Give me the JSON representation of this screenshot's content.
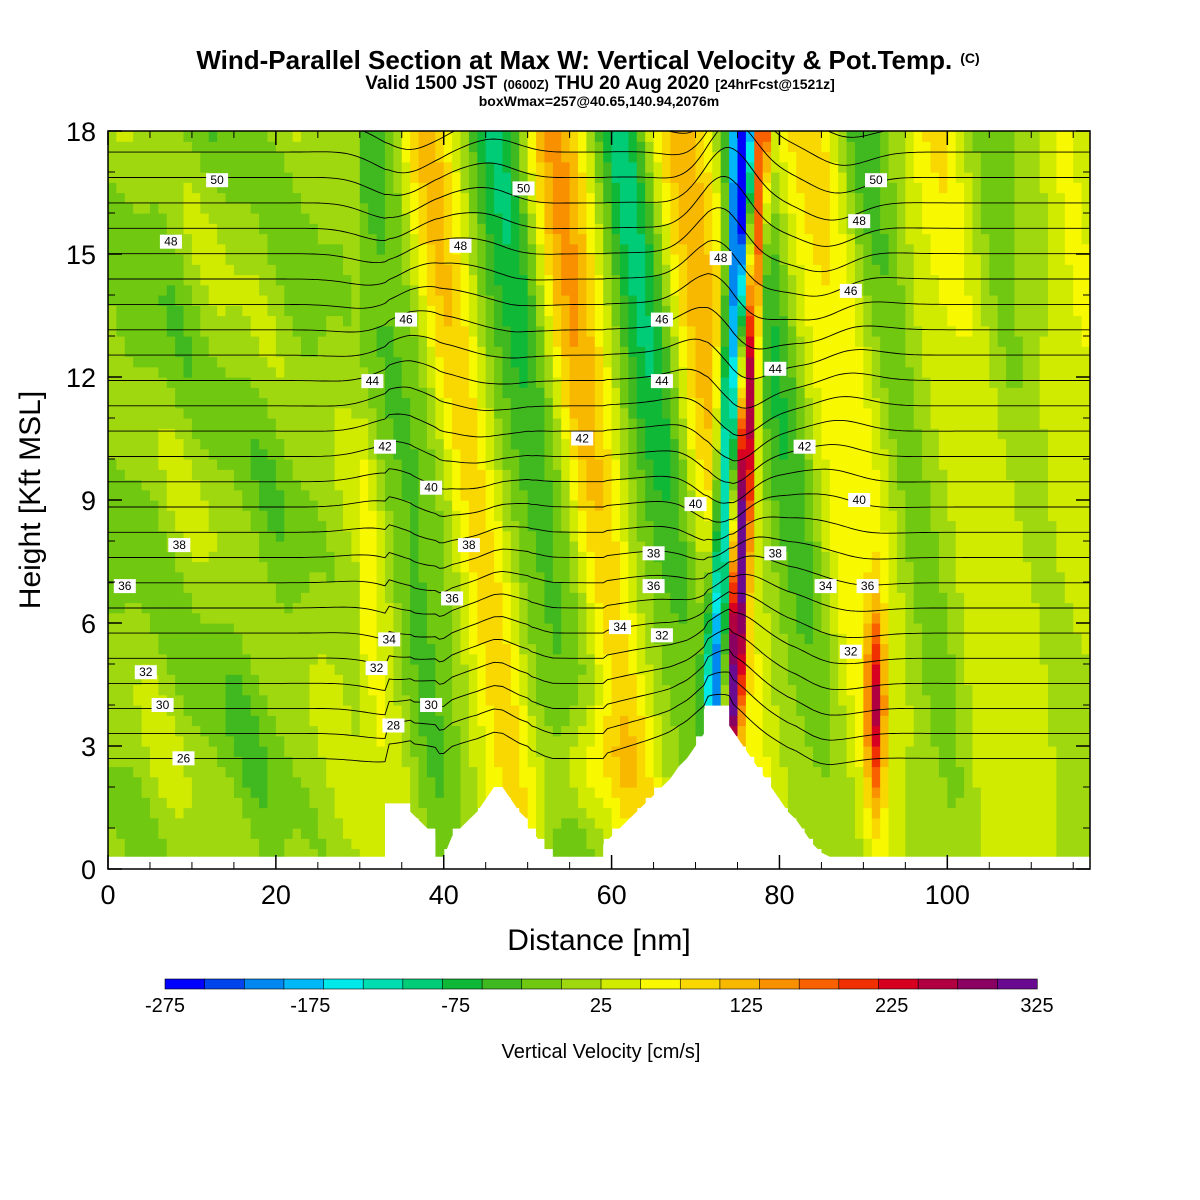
{
  "title": {
    "main": "Wind-Parallel Section at Max W: Vertical Velocity & Pot.Temp.",
    "main_mark": "(C)",
    "valid_pre": "Valid 1500 JST",
    "valid_utc": "(0600Z)",
    "valid_post": "THU 20 Aug 2020",
    "fcst": "[24hrFcst@1521z]",
    "boxinfo": "boxWmax=257@40.65,140.94,2076m"
  },
  "colors": {
    "palette": [
      "#0000ff",
      "#0044ee",
      "#0088f0",
      "#00b8f8",
      "#00e8e8",
      "#00ddb0",
      "#00cc77",
      "#10b838",
      "#40b820",
      "#70c810",
      "#a0d810",
      "#d0ea00",
      "#f8f800",
      "#f8d800",
      "#f8b800",
      "#f89000",
      "#f86000",
      "#f03000",
      "#d80020",
      "#b00040",
      "#8a0060",
      "#6a0a90"
    ],
    "terrain": "#ffffff",
    "contour": "#000000"
  },
  "chart_data": {
    "type": "heatmap",
    "xlabel": "Distance [nm]",
    "ylabel": "Height [Kft MSL]",
    "xlim": [
      0,
      117
    ],
    "ylim": [
      0,
      18
    ],
    "xticks": [
      0,
      20,
      40,
      60,
      80,
      100
    ],
    "yticks": [
      0,
      3,
      6,
      9,
      12,
      15,
      18
    ],
    "colorbar": {
      "label": "Vertical Velocity [cm/s]",
      "min": -275,
      "max": 325,
      "step": 25,
      "tick_values": [
        -275,
        -175,
        -75,
        25,
        125,
        225,
        325
      ],
      "tick_labels": [
        "-275",
        "-175",
        "-75",
        "25",
        "125",
        "225",
        "325"
      ]
    },
    "terrain": {
      "x": [
        0,
        31,
        32,
        33,
        33,
        36,
        36,
        37,
        38,
        39,
        39,
        40,
        41,
        42,
        43,
        44,
        45,
        46,
        47,
        48,
        49,
        50,
        50,
        51,
        52,
        53,
        53,
        59,
        59,
        60,
        61,
        62,
        63,
        64,
        65,
        66,
        67,
        68,
        69,
        70,
        71,
        71,
        74,
        74,
        75,
        76,
        77,
        78,
        79,
        80,
        81,
        82,
        83,
        84,
        85,
        86,
        86,
        117
      ],
      "height": [
        0.3,
        0.3,
        0.3,
        0.3,
        1.6,
        1.6,
        1.4,
        1.2,
        1.0,
        0.8,
        0.3,
        0.3,
        0.8,
        1.0,
        1.2,
        1.4,
        1.7,
        2.0,
        2.0,
        1.7,
        1.4,
        1.2,
        1.0,
        0.8,
        0.5,
        0.3,
        0.3,
        0.3,
        0.6,
        0.8,
        1.0,
        1.2,
        1.4,
        1.6,
        1.8,
        2.0,
        2.2,
        2.5,
        2.7,
        3.0,
        3.3,
        3.9,
        3.9,
        3.5,
        3.2,
        2.9,
        2.6,
        2.3,
        2.0,
        1.7,
        1.4,
        1.2,
        0.9,
        0.6,
        0.4,
        0.3,
        0.3,
        0.3
      ]
    },
    "theta_levels": [
      26,
      27,
      28,
      29,
      30,
      31,
      32,
      33,
      34,
      35,
      36,
      37,
      38,
      39,
      40,
      41,
      42,
      43,
      44,
      45,
      46,
      47,
      48,
      49,
      50,
      51
    ],
    "theta_labels": [
      {
        "text": "50",
        "x": 13,
        "y": 16.8
      },
      {
        "text": "48",
        "x": 7.5,
        "y": 15.3
      },
      {
        "text": "38",
        "x": 8.5,
        "y": 7.9
      },
      {
        "text": "36",
        "x": 2,
        "y": 6.9
      },
      {
        "text": "32",
        "x": 4.5,
        "y": 4.8
      },
      {
        "text": "30",
        "x": 6.5,
        "y": 4.0
      },
      {
        "text": "26",
        "x": 9,
        "y": 2.7
      },
      {
        "text": "50",
        "x": 49.5,
        "y": 16.6
      },
      {
        "text": "48",
        "x": 42,
        "y": 15.2
      },
      {
        "text": "46",
        "x": 35.5,
        "y": 13.4
      },
      {
        "text": "44",
        "x": 31.5,
        "y": 11.9
      },
      {
        "text": "42",
        "x": 33,
        "y": 10.3
      },
      {
        "text": "40",
        "x": 38.5,
        "y": 9.3
      },
      {
        "text": "38",
        "x": 43,
        "y": 7.9
      },
      {
        "text": "36",
        "x": 41,
        "y": 6.6
      },
      {
        "text": "34",
        "x": 33.5,
        "y": 5.6
      },
      {
        "text": "32",
        "x": 32,
        "y": 4.9
      },
      {
        "text": "30",
        "x": 38.5,
        "y": 4.0
      },
      {
        "text": "28",
        "x": 34,
        "y": 3.5
      },
      {
        "text": "42",
        "x": 56.5,
        "y": 10.5
      },
      {
        "text": "46",
        "x": 66,
        "y": 13.4
      },
      {
        "text": "44",
        "x": 66,
        "y": 11.9
      },
      {
        "text": "48",
        "x": 73,
        "y": 14.9
      },
      {
        "text": "40",
        "x": 70,
        "y": 8.9
      },
      {
        "text": "38",
        "x": 65,
        "y": 7.7
      },
      {
        "text": "36",
        "x": 65,
        "y": 6.9
      },
      {
        "text": "34",
        "x": 61,
        "y": 5.9
      },
      {
        "text": "32",
        "x": 66,
        "y": 5.7
      },
      {
        "text": "50",
        "x": 91.5,
        "y": 16.8
      },
      {
        "text": "48",
        "x": 89.5,
        "y": 15.8
      },
      {
        "text": "46",
        "x": 88.5,
        "y": 14.1
      },
      {
        "text": "44",
        "x": 79.5,
        "y": 12.2
      },
      {
        "text": "42",
        "x": 83,
        "y": 10.3
      },
      {
        "text": "40",
        "x": 89.5,
        "y": 9.0
      },
      {
        "text": "38",
        "x": 79.5,
        "y": 7.7
      },
      {
        "text": "34",
        "x": 85.5,
        "y": 6.9
      },
      {
        "text": "36",
        "x": 90.5,
        "y": 6.9
      },
      {
        "text": "32",
        "x": 88.5,
        "y": 5.3
      }
    ]
  }
}
